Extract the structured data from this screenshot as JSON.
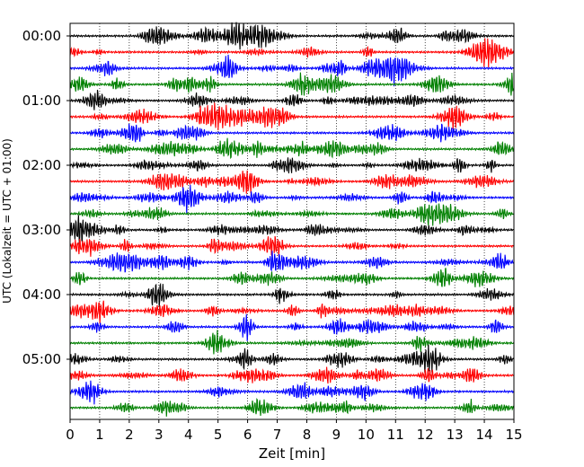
{
  "chart_data": {
    "type": "line",
    "subtype": "helicorder-seismogram",
    "title": "",
    "xlabel": "Zeit  [min]",
    "ylabel": "UTC (Lokalzeit = UTC + 01:00)",
    "xlim": [
      0,
      15
    ],
    "x_ticks": [
      "0",
      "1",
      "2",
      "3",
      "4",
      "5",
      "6",
      "7",
      "8",
      "9",
      "10",
      "11",
      "12",
      "13",
      "14",
      "15"
    ],
    "y_tick_labels": [
      "00:00",
      "01:00",
      "02:00",
      "03:00",
      "04:00",
      "05:00"
    ],
    "minutes_per_trace": 15,
    "trace_count": 24,
    "trace_colors": [
      "#000000",
      "#ff0000",
      "#0000ff",
      "#008000"
    ],
    "grid": "vertical dotted lines at each minute",
    "legend": "none"
  }
}
